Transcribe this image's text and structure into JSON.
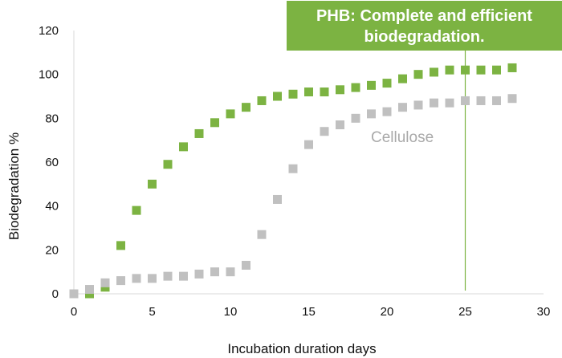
{
  "chart_data": {
    "type": "scatter",
    "title": "",
    "xlabel": "Incubation duration days",
    "ylabel": "Biodegradation  %",
    "xlim": [
      0,
      30
    ],
    "ylim": [
      0,
      120
    ],
    "xticks": [
      0,
      5,
      10,
      15,
      20,
      25,
      30
    ],
    "yticks": [
      0,
      20,
      40,
      60,
      80,
      100,
      120
    ],
    "grid": false,
    "series": [
      {
        "color": "#7cb342",
        "marker": "square",
        "x": [
          1,
          2,
          3,
          4,
          5,
          6,
          7,
          8,
          9,
          10,
          11,
          12,
          13,
          14,
          15,
          16,
          17,
          18,
          19,
          20,
          21,
          22,
          23,
          24,
          25,
          26,
          27,
          28
        ],
        "y": [
          0,
          3,
          22,
          38,
          50,
          59,
          67,
          73,
          78,
          82,
          85,
          88,
          90,
          91,
          92,
          92,
          93,
          94,
          95,
          96,
          98,
          100,
          101,
          102,
          102,
          102,
          102,
          103
        ]
      },
      {
        "name": "Cellulose",
        "color": "#c0c0c0",
        "marker": "square",
        "x": [
          0,
          1,
          2,
          3,
          4,
          5,
          6,
          7,
          8,
          9,
          10,
          11,
          12,
          13,
          14,
          15,
          16,
          17,
          18,
          19,
          20,
          21,
          22,
          23,
          24,
          25,
          26,
          27,
          28
        ],
        "y": [
          0,
          2,
          5,
          6,
          7,
          7,
          8,
          8,
          9,
          10,
          10,
          13,
          27,
          43,
          57,
          68,
          74,
          77,
          80,
          82,
          83,
          85,
          86,
          87,
          87,
          88,
          88,
          88,
          89
        ]
      }
    ],
    "annotations": [
      {
        "type": "vline",
        "x": 25,
        "color": "#7cb342"
      },
      {
        "type": "callout",
        "text": "PHB: Complete and efficient biodegradation.",
        "background": "#7cb342",
        "text_color": "#ffffff"
      }
    ]
  },
  "callout": {
    "line1": "PHB: Complete and efficient",
    "line2": "biodegradation."
  },
  "colors": {
    "phb": "#7cb342",
    "cellulose": "#c0c0c0",
    "axis": "#d9d9d9"
  }
}
